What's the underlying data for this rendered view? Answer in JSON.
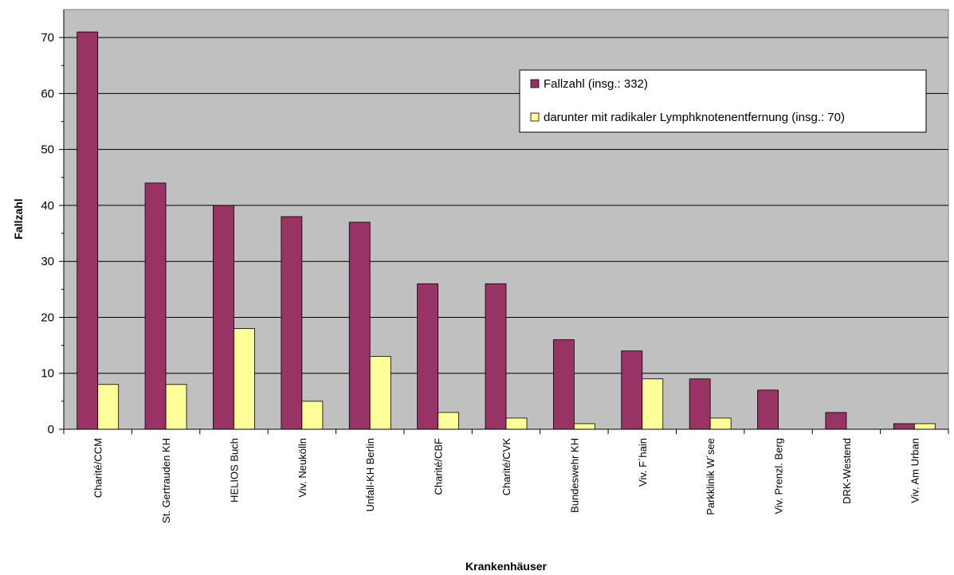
{
  "chart_data": {
    "type": "bar",
    "title": "",
    "xlabel": "Krankenhäuser",
    "ylabel": "Fallzahl",
    "ylim": [
      0,
      75
    ],
    "yticks": [
      0,
      10,
      20,
      30,
      40,
      50,
      60,
      70
    ],
    "grid": true,
    "legend_position": "top-right",
    "categories": [
      "Charité/CCM",
      "St. Gertrauden KH",
      "HELIOS Buch",
      "Viv. Neukölln",
      "Unfall-KH Berlin",
      "Charité/CBF",
      "Charité/CVK",
      "Bundeswehr KH",
      "Viv. F´hain",
      "Parkklinik W´see",
      "Viv. Prenzl. Berg",
      "DRK-Westend",
      "Viv. Am Urban"
    ],
    "series": [
      {
        "name": "Fallzahl (insg.: 332)",
        "color": "#993366",
        "values": [
          71,
          44,
          40,
          38,
          37,
          26,
          26,
          16,
          14,
          9,
          7,
          3,
          1
        ]
      },
      {
        "name": "darunter mit radikaler Lymphknotenentfernung (insg.: 70)",
        "color": "#FFFF99",
        "values": [
          8,
          8,
          18,
          5,
          13,
          3,
          2,
          1,
          9,
          2,
          0,
          0,
          1
        ]
      }
    ],
    "plot_background": "#C0C0C0"
  }
}
